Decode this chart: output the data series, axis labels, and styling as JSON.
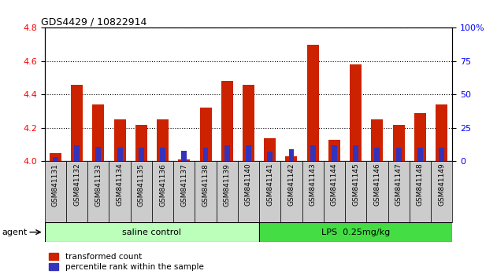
{
  "title": "GDS4429 / 10822914",
  "categories": [
    "GSM841131",
    "GSM841132",
    "GSM841133",
    "GSM841134",
    "GSM841135",
    "GSM841136",
    "GSM841137",
    "GSM841138",
    "GSM841139",
    "GSM841140",
    "GSM841141",
    "GSM841142",
    "GSM841143",
    "GSM841144",
    "GSM841145",
    "GSM841146",
    "GSM841147",
    "GSM841148",
    "GSM841149"
  ],
  "red_values": [
    4.05,
    4.46,
    4.34,
    4.25,
    4.22,
    4.25,
    4.01,
    4.32,
    4.48,
    4.46,
    4.14,
    4.03,
    4.7,
    4.13,
    4.58,
    4.25,
    4.22,
    4.29,
    4.34
  ],
  "blue_values": [
    3,
    12,
    11,
    10,
    10,
    10,
    8,
    10,
    12,
    12,
    7,
    9,
    12,
    12,
    12,
    10,
    10,
    10,
    10
  ],
  "ylim_left": [
    4.0,
    4.8
  ],
  "ylim_right": [
    0,
    100
  ],
  "yticks_left": [
    4.0,
    4.2,
    4.4,
    4.6,
    4.8
  ],
  "yticks_right": [
    0,
    25,
    50,
    75,
    100
  ],
  "group1_label": "saline control",
  "group1_count": 10,
  "group2_label": "LPS  0.25mg/kg",
  "group2_count": 9,
  "agent_label": "agent",
  "legend_red": "transformed count",
  "legend_blue": "percentile rank within the sample",
  "bar_color_red": "#CC2200",
  "bar_color_blue": "#3333BB",
  "group1_color": "#BBFFBB",
  "group2_color": "#44DD44",
  "xtick_bg": "#CCCCCC",
  "bar_width": 0.55,
  "blue_bar_width": 0.25
}
